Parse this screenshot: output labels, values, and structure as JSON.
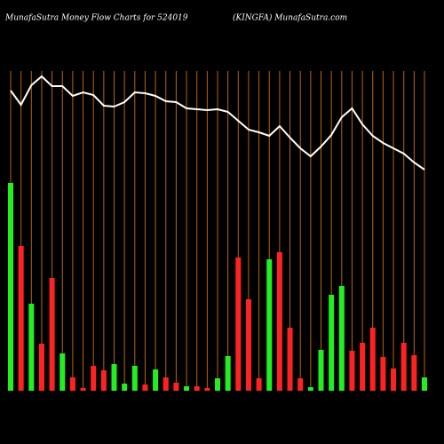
{
  "chart_data": {
    "type": "bar",
    "title": "MunafaSutra  Money Flow  Charts for 524019",
    "subtitle": "(KINGFA) MunafaSutra.com",
    "categories": [
      null,
      null,
      null,
      null,
      null,
      null,
      null,
      null,
      null,
      null,
      null,
      null,
      null,
      null,
      null,
      null,
      null,
      null,
      null,
      null,
      null,
      null,
      null,
      null,
      null,
      null,
      null,
      null,
      null,
      null,
      null,
      null,
      null,
      null,
      null,
      null,
      null,
      null,
      null,
      null,
      null
    ],
    "ylim": [
      0,
      360
    ],
    "grid_color": "#b8650a",
    "series": [
      {
        "type": "bar",
        "colors": [
          "#22ee22",
          "#ff2222",
          "#22ee22",
          "#ff2222",
          "#ff2222",
          "#22ee22",
          "#ff2222",
          "#ff2222",
          "#ff2222",
          "#ff2222",
          "#22ee22",
          "#22ee22",
          "#22ee22",
          "#ff2222",
          "#22ee22",
          "#ff2222",
          "#ff2222",
          "#22ee22",
          "#ff2222",
          "#ff2222",
          "#22ee22",
          "#22ee22",
          "#ff2222",
          "#ff2222",
          "#ff2222",
          "#22ee22",
          "#ff2222",
          "#ff2222",
          "#ff2222",
          "#22ee22",
          "#22ee22",
          "#22ee22",
          "#22ee22",
          "#ff2222",
          "#ff2222",
          "#ff2222",
          "#ff2222",
          "#ff2222",
          "#ff2222",
          "#ff2222",
          "#22ee22"
        ],
        "values": [
          234,
          163,
          98,
          53,
          127,
          42,
          15,
          3,
          28,
          23,
          30,
          8,
          28,
          7,
          24,
          15,
          9,
          5,
          5,
          3,
          14,
          39,
          150,
          103,
          14,
          148,
          156,
          71,
          14,
          4,
          46,
          108,
          118,
          45,
          54,
          71,
          38,
          25,
          54,
          40,
          15
        ]
      },
      {
        "type": "line",
        "color": "#ffffff",
        "values": [
          338,
          322,
          344,
          354,
          343,
          343,
          332,
          336,
          333,
          321,
          320,
          325,
          336,
          335,
          332,
          326,
          325,
          318,
          317,
          316,
          317,
          314,
          304,
          294,
          291,
          287,
          298,
          285,
          273,
          264,
          275,
          288,
          308,
          318,
          300,
          287,
          279,
          273,
          267,
          257,
          249
        ]
      }
    ]
  }
}
